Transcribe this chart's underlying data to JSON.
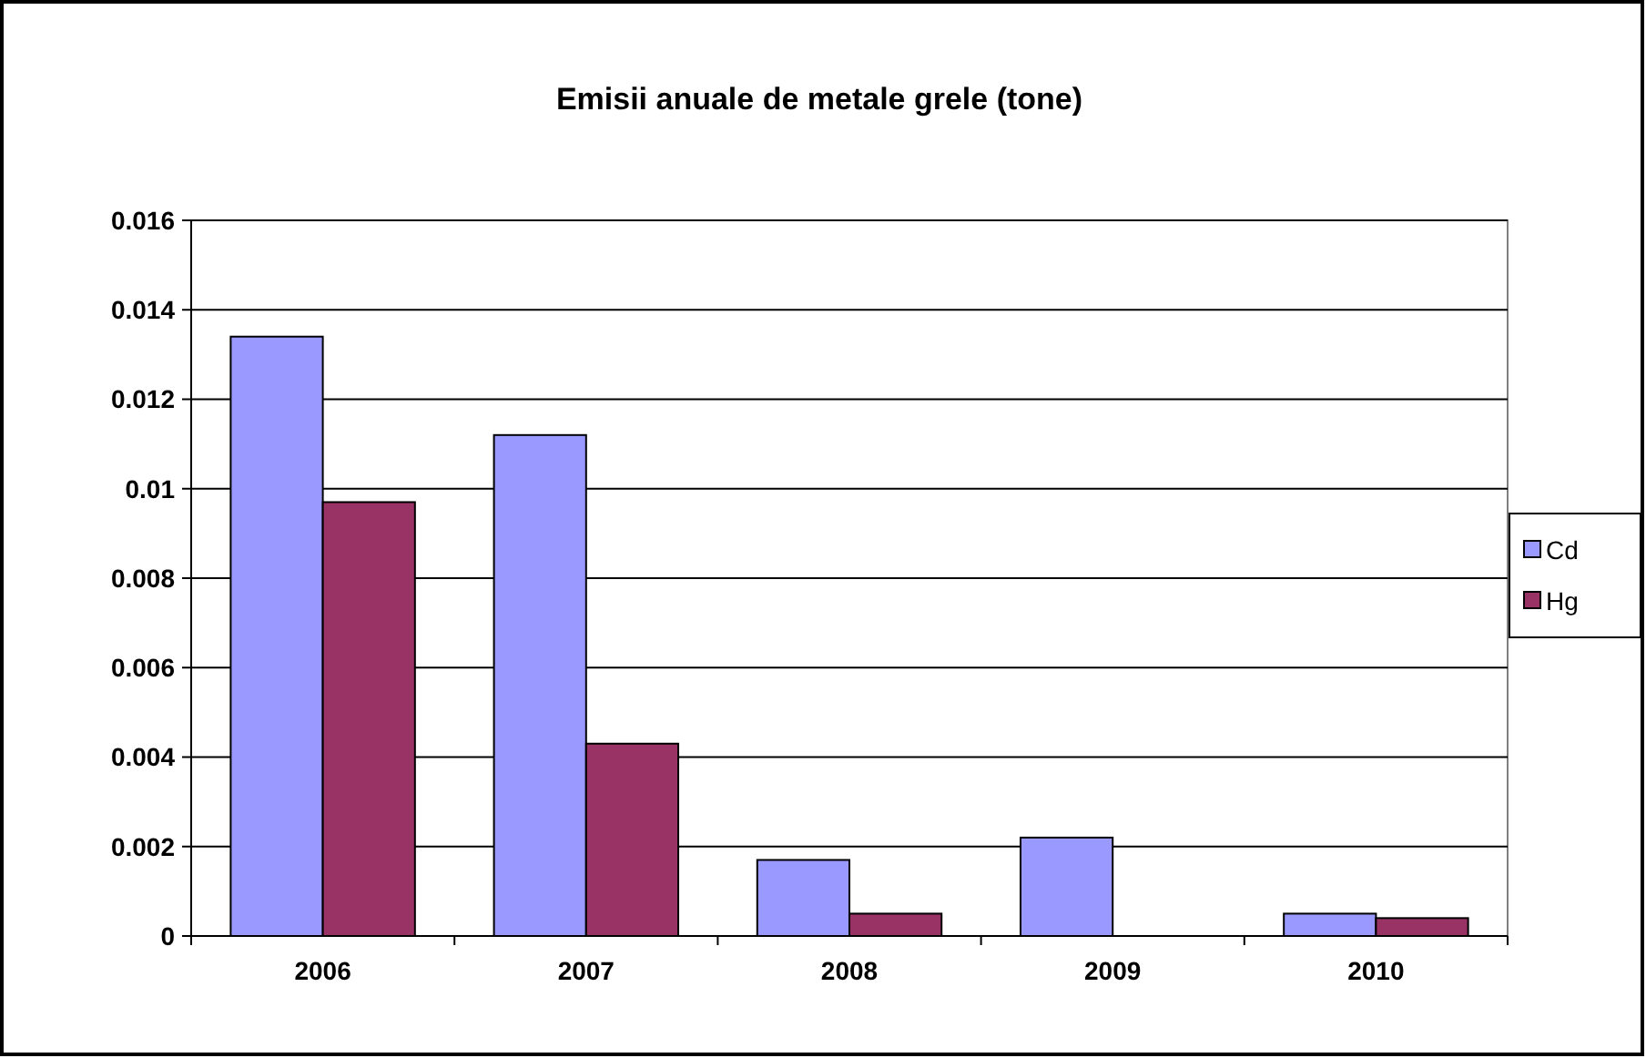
{
  "chart_data": {
    "type": "bar",
    "title": "Emisii anuale de metale grele (tone)",
    "categories": [
      "2006",
      "2007",
      "2008",
      "2009",
      "2010"
    ],
    "series": [
      {
        "name": "Cd",
        "color": "#9999ff",
        "values": [
          0.0134,
          0.0112,
          0.0017,
          0.0022,
          0.0005
        ]
      },
      {
        "name": "Hg",
        "color": "#993366",
        "values": [
          0.0097,
          0.0043,
          0.0005,
          0,
          0.0004
        ]
      }
    ],
    "ylim": [
      0,
      0.016
    ],
    "yticks": [
      0,
      0.002,
      0.004,
      0.006,
      0.008,
      0.01,
      0.012,
      0.014,
      0.016
    ],
    "grid": "y",
    "legend": "right"
  }
}
